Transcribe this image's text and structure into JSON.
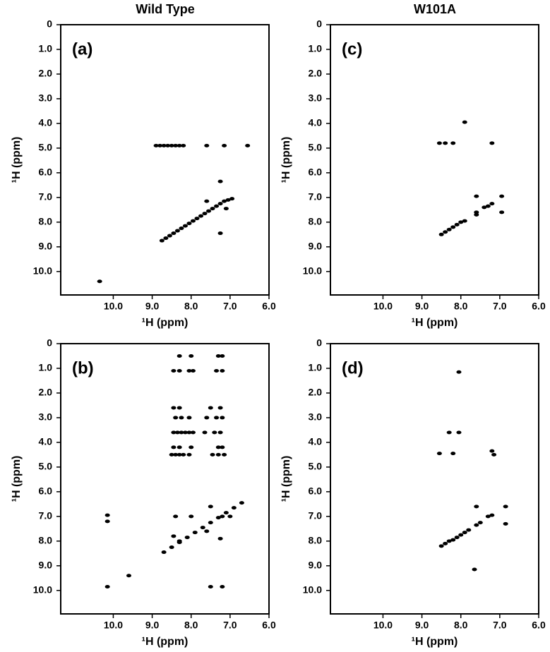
{
  "column_titles": [
    "Wild Type",
    "W101A"
  ],
  "chart_data": [
    {
      "type": "scatter",
      "panel_label": "(a)",
      "x_label": "¹H (ppm)",
      "y_label": "¹H (ppm)",
      "color": "#000000",
      "xlim": [
        11.35,
        6.0
      ],
      "ylim": [
        0,
        10.95
      ],
      "xticks": [
        {
          "value": 10,
          "label": "10.0"
        },
        {
          "value": 9,
          "label": "9.0"
        },
        {
          "value": 8,
          "label": "8.0"
        },
        {
          "value": 7,
          "label": "7.0"
        },
        {
          "value": 6,
          "label": "6.0"
        }
      ],
      "yticks": [
        0,
        {
          "value": 1,
          "label": "1.0"
        },
        {
          "value": 2,
          "label": "2.0"
        },
        {
          "value": 3,
          "label": "3.0"
        },
        {
          "value": 4,
          "label": "4.0"
        },
        {
          "value": 5,
          "label": "5.0"
        },
        {
          "value": 6,
          "label": "6.0"
        },
        {
          "value": 7,
          "label": "7.0"
        },
        {
          "value": 8,
          "label": "8.0"
        },
        {
          "value": 9,
          "label": "9.0"
        },
        {
          "value": 10,
          "label": "10.0"
        }
      ],
      "x": [
        10.35,
        8.9,
        8.8,
        8.7,
        8.6,
        8.5,
        8.4,
        8.3,
        8.2,
        7.6,
        7.15,
        6.55,
        7.6,
        7.1,
        7.25,
        7.25,
        8.75,
        8.65,
        8.55,
        8.45,
        8.35,
        8.25,
        8.15,
        8.05,
        7.95,
        7.85,
        7.75,
        7.65,
        7.55,
        7.45,
        7.35,
        7.25,
        7.15,
        7.05,
        6.95
      ],
      "values": [
        10.4,
        4.9,
        4.9,
        4.9,
        4.9,
        4.9,
        4.9,
        4.9,
        4.9,
        4.9,
        4.9,
        4.9,
        7.15,
        7.45,
        6.35,
        8.45,
        8.75,
        8.65,
        8.55,
        8.45,
        8.35,
        8.25,
        8.15,
        8.05,
        7.95,
        7.85,
        7.75,
        7.65,
        7.55,
        7.45,
        7.35,
        7.25,
        7.15,
        7.1,
        7.05
      ]
    },
    {
      "type": "scatter",
      "panel_label": "(b)",
      "x_label": "¹H (ppm)",
      "y_label": "¹H (ppm)",
      "color": "#000000",
      "xlim": [
        11.35,
        6.0
      ],
      "ylim": [
        0,
        10.95
      ],
      "xticks": [
        {
          "value": 10,
          "label": "10.0"
        },
        {
          "value": 9,
          "label": "9.0"
        },
        {
          "value": 8,
          "label": "8.0"
        },
        {
          "value": 7,
          "label": "7.0"
        },
        {
          "value": 6,
          "label": "6.0"
        }
      ],
      "yticks": [
        0,
        {
          "value": 1,
          "label": "1.0"
        },
        {
          "value": 2,
          "label": "2.0"
        },
        {
          "value": 3,
          "label": "3.0"
        },
        {
          "value": 4,
          "label": "4.0"
        },
        {
          "value": 5,
          "label": "5.0"
        },
        {
          "value": 6,
          "label": "6.0"
        },
        {
          "value": 7,
          "label": "7.0"
        },
        {
          "value": 8,
          "label": "8.0"
        },
        {
          "value": 9,
          "label": "9.0"
        },
        {
          "value": 10,
          "label": "10.0"
        }
      ],
      "x": [
        8.3,
        8.0,
        7.3,
        7.2,
        8.45,
        8.3,
        8.05,
        7.95,
        7.35,
        7.2,
        8.45,
        8.3,
        7.5,
        7.25,
        8.4,
        8.25,
        8.05,
        7.6,
        7.35,
        7.2,
        8.45,
        8.35,
        8.25,
        8.15,
        8.05,
        7.95,
        7.65,
        7.4,
        7.25,
        8.45,
        8.3,
        8.0,
        7.3,
        7.2,
        8.5,
        8.4,
        8.3,
        8.2,
        8.05,
        7.45,
        7.3,
        7.15,
        10.15,
        10.15,
        10.15,
        9.6,
        7.5,
        7.2,
        8.4,
        8.0,
        8.45,
        8.3,
        7.5,
        7.2,
        7.0,
        7.25,
        7.6,
        8.7,
        8.5,
        8.3,
        8.1,
        7.9,
        7.7,
        7.5,
        7.3,
        7.1,
        6.9,
        6.7
      ],
      "values": [
        0.5,
        0.5,
        0.5,
        0.5,
        1.1,
        1.1,
        1.1,
        1.1,
        1.1,
        1.1,
        2.6,
        2.6,
        2.6,
        2.6,
        3.0,
        3.0,
        3.0,
        3.0,
        3.0,
        3.0,
        3.6,
        3.6,
        3.6,
        3.6,
        3.6,
        3.6,
        3.6,
        3.6,
        3.6,
        4.2,
        4.2,
        4.2,
        4.2,
        4.2,
        4.5,
        4.5,
        4.5,
        4.5,
        4.5,
        4.5,
        4.5,
        4.5,
        6.95,
        7.2,
        9.85,
        9.4,
        9.85,
        9.85,
        7.0,
        7.0,
        7.8,
        8.0,
        6.6,
        7.0,
        7.0,
        7.9,
        7.6,
        8.45,
        8.25,
        8.05,
        7.85,
        7.65,
        7.45,
        7.25,
        7.05,
        6.85,
        6.65,
        6.45
      ]
    },
    {
      "type": "scatter",
      "panel_label": "(c)",
      "x_label": "¹H (ppm)",
      "y_label": "¹H (ppm)",
      "color": "#000000",
      "xlim": [
        11.35,
        6.0
      ],
      "ylim": [
        0,
        10.95
      ],
      "xticks": [
        {
          "value": 10,
          "label": "10.0"
        },
        {
          "value": 9,
          "label": "9.0"
        },
        {
          "value": 8,
          "label": "8.0"
        },
        {
          "value": 7,
          "label": "7.0"
        },
        {
          "value": 6,
          "label": "6.0"
        }
      ],
      "yticks": [
        0,
        {
          "value": 1,
          "label": "1.0"
        },
        {
          "value": 2,
          "label": "2.0"
        },
        {
          "value": 3,
          "label": "3.0"
        },
        {
          "value": 4,
          "label": "4.0"
        },
        {
          "value": 5,
          "label": "5.0"
        },
        {
          "value": 6,
          "label": "6.0"
        },
        {
          "value": 7,
          "label": "7.0"
        },
        {
          "value": 8,
          "label": "8.0"
        },
        {
          "value": 9,
          "label": "9.0"
        },
        {
          "value": 10,
          "label": "10.0"
        }
      ],
      "x": [
        8.55,
        8.4,
        8.2,
        7.2,
        7.9,
        7.6,
        7.6,
        6.95,
        6.95,
        8.5,
        8.4,
        8.3,
        8.2,
        8.1,
        8.0,
        7.9,
        7.6,
        7.4,
        7.3,
        7.2
      ],
      "values": [
        4.8,
        4.8,
        4.8,
        4.8,
        3.95,
        6.95,
        7.6,
        6.95,
        7.6,
        8.5,
        8.4,
        8.3,
        8.2,
        8.1,
        8.0,
        7.95,
        7.7,
        7.4,
        7.35,
        7.25
      ]
    },
    {
      "type": "scatter",
      "panel_label": "(d)",
      "x_label": "¹H (ppm)",
      "y_label": "¹H (ppm)",
      "color": "#000000",
      "xlim": [
        11.35,
        6.0
      ],
      "ylim": [
        0,
        10.95
      ],
      "xticks": [
        {
          "value": 10,
          "label": "10.0"
        },
        {
          "value": 9,
          "label": "9.0"
        },
        {
          "value": 8,
          "label": "8.0"
        },
        {
          "value": 7,
          "label": "7.0"
        },
        {
          "value": 6,
          "label": "6.0"
        }
      ],
      "yticks": [
        0,
        {
          "value": 1,
          "label": "1.0"
        },
        {
          "value": 2,
          "label": "2.0"
        },
        {
          "value": 3,
          "label": "3.0"
        },
        {
          "value": 4,
          "label": "4.0"
        },
        {
          "value": 5,
          "label": "5.0"
        },
        {
          "value": 6,
          "label": "6.0"
        },
        {
          "value": 7,
          "label": "7.0"
        },
        {
          "value": 8,
          "label": "8.0"
        },
        {
          "value": 9,
          "label": "9.0"
        },
        {
          "value": 10,
          "label": "10.0"
        }
      ],
      "x": [
        8.05,
        8.3,
        8.05,
        8.55,
        8.2,
        7.2,
        7.15,
        7.6,
        6.85,
        6.85,
        7.65,
        8.5,
        8.4,
        8.3,
        8.2,
        8.1,
        8.0,
        7.9,
        7.8,
        7.6,
        7.5,
        7.3,
        7.2
      ],
      "values": [
        1.15,
        3.6,
        3.6,
        4.45,
        4.45,
        4.35,
        4.5,
        6.6,
        6.6,
        7.3,
        9.15,
        8.2,
        8.1,
        8.0,
        7.95,
        7.85,
        7.75,
        7.65,
        7.55,
        7.35,
        7.25,
        7.0,
        6.95
      ]
    }
  ]
}
